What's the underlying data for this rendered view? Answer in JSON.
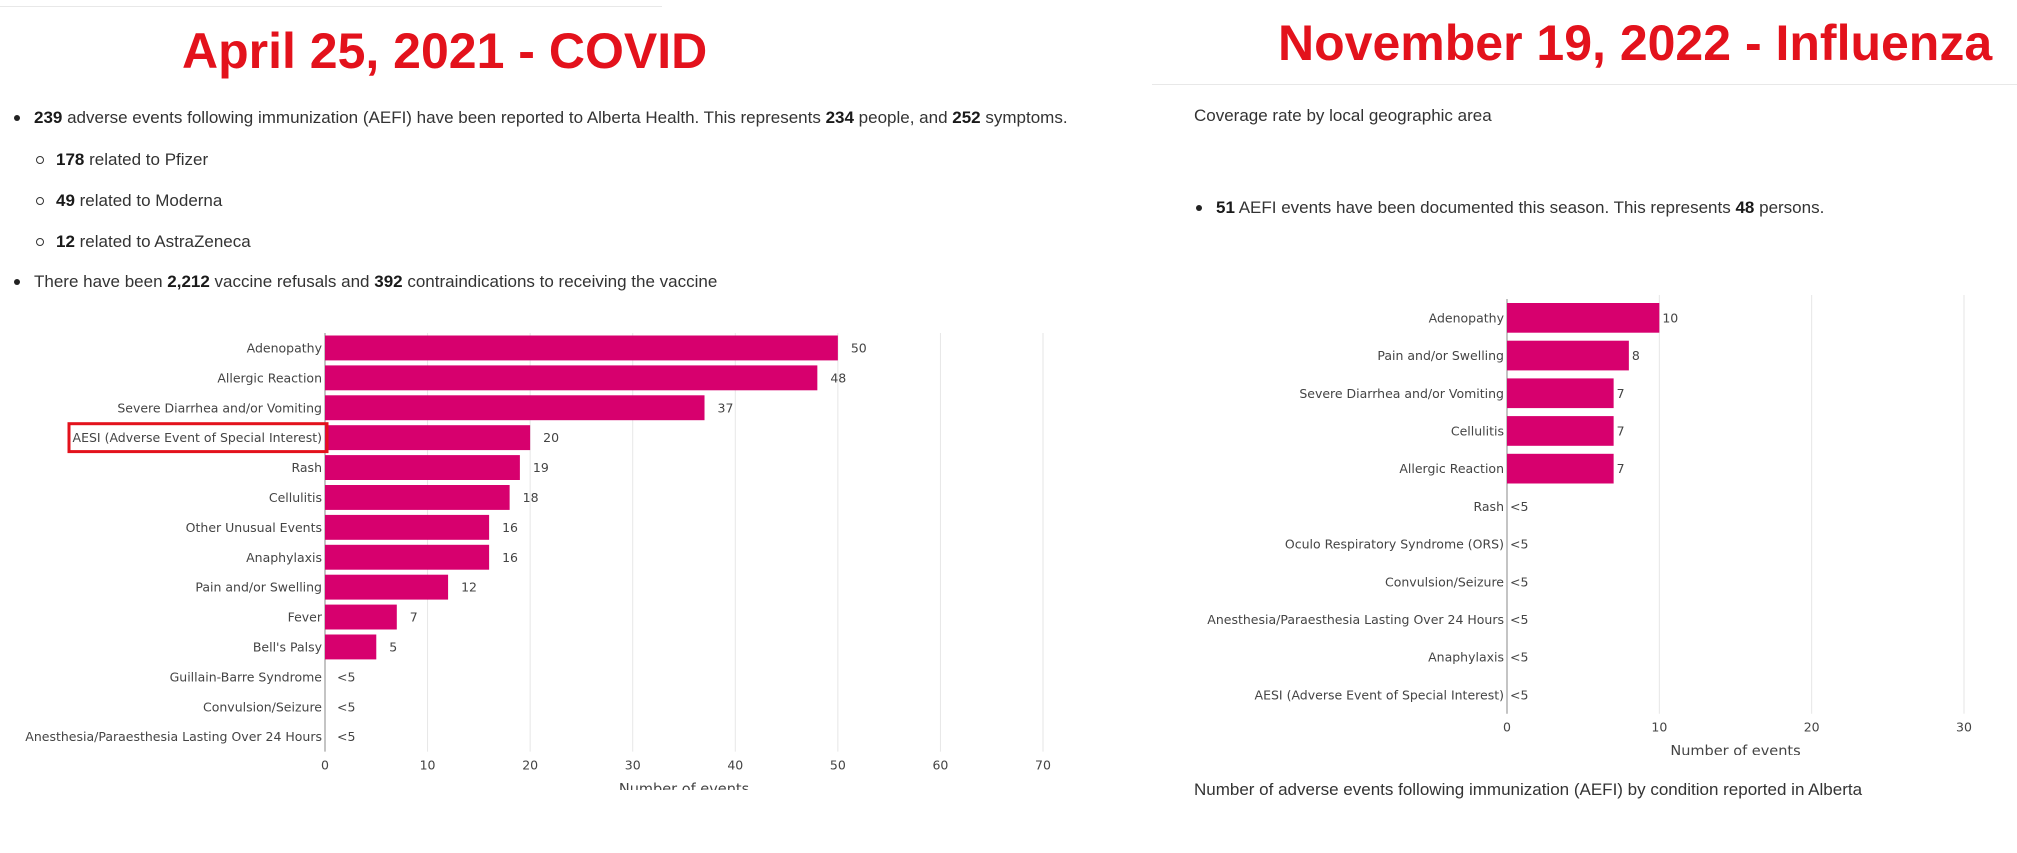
{
  "left": {
    "title": "April 25, 2021 - COVID",
    "summary": {
      "events": "239",
      "text1": " adverse events following immunization (AEFI) have been reported to Alberta Health. This represents ",
      "people": "234",
      "text2": " people, and ",
      "symptoms": "252",
      "text3": " symptoms."
    },
    "subitems": [
      {
        "count": "178",
        "text": " related to Pfizer"
      },
      {
        "count": "49",
        "text": " related to Moderna"
      },
      {
        "count": "12",
        "text": " related to AstraZeneca"
      }
    ],
    "refusals": {
      "text1": "There have been ",
      "refusals": "2,212",
      "text2": " vaccine refusals and ",
      "contra": "392",
      "text3": " contraindications to receiving the vaccine"
    }
  },
  "right": {
    "title": "November 19, 2022 - Influenza",
    "coverage_text": "Coverage rate by local geographic area",
    "summary": {
      "events": "51",
      "text1": " AEFI events have been documented this season. This represents ",
      "persons": "48",
      "text2": " persons."
    },
    "caption": "Number of adverse events following immunization (AEFI) by condition reported in Alberta"
  },
  "colors": {
    "bar": "#d7006e",
    "title_red": "#e3121c",
    "highlight_box": "#e3121c"
  },
  "chart_data": [
    {
      "type": "bar",
      "orientation": "horizontal",
      "categories": [
        "Adenopathy",
        "Allergic Reaction",
        "Severe Diarrhea and/or Vomiting",
        "AESI (Adverse Event of Special Interest)",
        "Rash",
        "Cellulitis",
        "Other Unusual Events",
        "Anaphylaxis",
        "Pain and/or Swelling",
        "Fever",
        "Bell's Palsy",
        "Guillain-Barre Syndrome",
        "Convulsion/Seizure",
        "Anesthesia/Paraesthesia Lasting Over 24 Hours"
      ],
      "values": [
        50,
        48,
        37,
        20,
        19,
        18,
        16,
        16,
        12,
        7,
        5,
        null,
        null,
        null
      ],
      "value_labels": [
        "50",
        "48",
        "37",
        "20",
        "19",
        "18",
        "16",
        "16",
        "12",
        "7",
        "5",
        "<5",
        "<5",
        "<5"
      ],
      "highlighted_category": "AESI (Adverse Event of Special Interest)",
      "xlabel": "Number of events",
      "xlim": [
        0,
        70
      ],
      "xticks": [
        0,
        10,
        20,
        30,
        40,
        50,
        60,
        70
      ],
      "grid": true
    },
    {
      "type": "bar",
      "orientation": "horizontal",
      "categories": [
        "Adenopathy",
        "Pain and/or Swelling",
        "Severe Diarrhea and/or Vomiting",
        "Cellulitis",
        "Allergic Reaction",
        "Rash",
        "Oculo Respiratory Syndrome (ORS)",
        "Convulsion/Seizure",
        "Anesthesia/Paraesthesia Lasting Over 24 Hours",
        "Anaphylaxis",
        "AESI (Adverse Event of Special Interest)"
      ],
      "values": [
        10,
        8,
        7,
        7,
        7,
        null,
        null,
        null,
        null,
        null,
        null
      ],
      "value_labels": [
        "10",
        "8",
        "7",
        "7",
        "7",
        "<5",
        "<5",
        "<5",
        "<5",
        "<5",
        "<5"
      ],
      "xlabel": "Number of events",
      "xlim": [
        0,
        30
      ],
      "xticks": [
        0,
        10,
        20,
        30
      ],
      "grid": true
    }
  ]
}
